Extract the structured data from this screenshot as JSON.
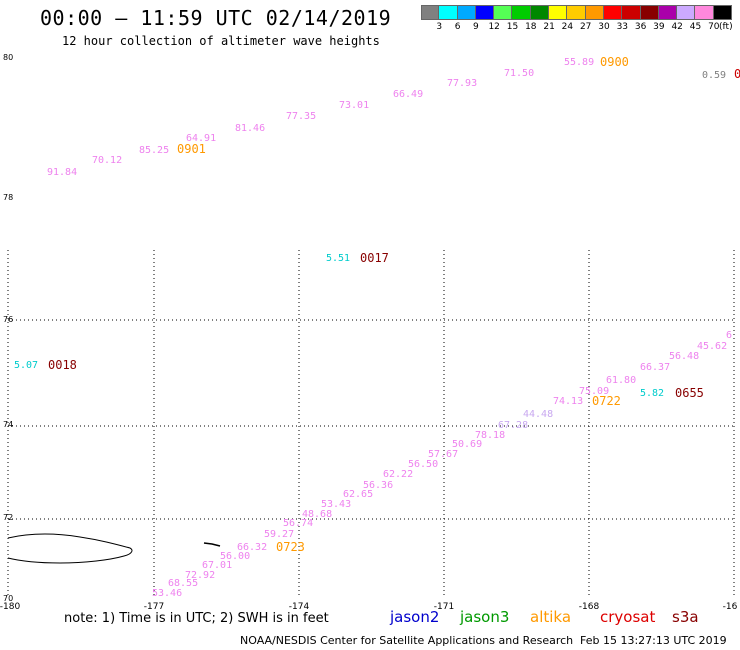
{
  "header": {
    "title": "00:00 – 11:59 UTC 02/14/2019",
    "subtitle": "12 hour collection of altimeter wave heights"
  },
  "colorbar": {
    "colors": [
      "#808080",
      "#00ffff",
      "#00aaff",
      "#0000ff",
      "#55ff55",
      "#00cc00",
      "#008800",
      "#ffff00",
      "#ffcc00",
      "#ff9900",
      "#ff0000",
      "#cc0000",
      "#880000",
      "#aa00aa",
      "#ccaaff",
      "#ff88dd",
      "#000000"
    ],
    "labels": [
      "3",
      "6",
      "9",
      "12",
      "15",
      "18",
      "21",
      "24",
      "27",
      "30",
      "33",
      "36",
      "39",
      "42",
      "45",
      "70",
      "(ft)"
    ]
  },
  "axes": {
    "lon_labels": [
      "-180",
      "-177",
      "-174",
      "-171",
      "-168",
      "-16"
    ],
    "lat_labels": [
      "80",
      "78",
      "76",
      "74",
      "72",
      "70"
    ]
  },
  "tracks": {
    "upper": {
      "values": [
        "91.84",
        "70.12",
        "85.25",
        "64.91",
        "81.46",
        "77.35",
        "73.01",
        "66.49",
        "77.93",
        "71.50",
        "55.89"
      ],
      "times": [
        "0901",
        "0900"
      ],
      "side_value": "0.59"
    },
    "lower": {
      "values": [
        "53.46",
        "68.55",
        "72.92",
        "67.01",
        "56.00",
        "66.32",
        "59.27",
        "56.74",
        "48.68",
        "53.43",
        "62.65",
        "56.36",
        "62.22",
        "56.50",
        "57.67",
        "50.69",
        "78.18",
        "67.28",
        "44.48",
        "74.13",
        "75.09",
        "61.80",
        "66.37",
        "56.48",
        "45.62",
        "6"
      ],
      "times": [
        "0723",
        "0722"
      ]
    },
    "markers": [
      {
        "value": "5.51",
        "time": "0017"
      },
      {
        "value": "5.07",
        "time": "0018"
      },
      {
        "value": "5.82",
        "time": "0655"
      }
    ]
  },
  "legend": {
    "note": "note: 1) Time is in UTC; 2) SWH is in feet",
    "satellites": [
      {
        "name": "jason2",
        "color": "#0000cc"
      },
      {
        "name": "jason3",
        "color": "#009900"
      },
      {
        "name": "altika",
        "color": "#ff9900"
      },
      {
        "name": "cryosat",
        "color": "#dd0000"
      },
      {
        "name": "s3a",
        "color": "#880000"
      }
    ]
  },
  "footer": {
    "credit": "NOAA/NESDIS Center for Satellite Applications and Research",
    "timestamp": "Feb 15 13:27:13 UTC 2019"
  }
}
